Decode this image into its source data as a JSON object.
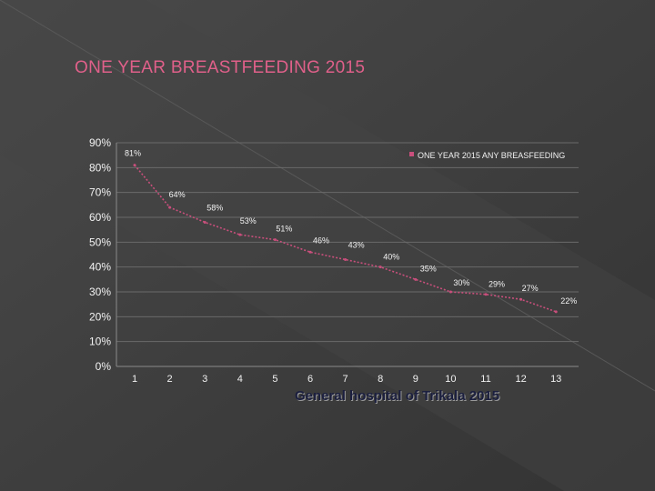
{
  "slide": {
    "title": "ONE YEAR BREASTFEEDING 2015",
    "caption": "General hospital of Trikala 2015"
  },
  "colors": {
    "background": "#3d3d3d",
    "title": "#e0608a",
    "series_line": "#c94f7c",
    "axis_text": "#f2f2f2",
    "gridline": "#6a6a6a",
    "caption": "#1b1f3f"
  },
  "chart_data": {
    "type": "line",
    "x": [
      1,
      2,
      3,
      4,
      5,
      6,
      7,
      8,
      9,
      10,
      11,
      12,
      13
    ],
    "series": [
      {
        "name": "ONE YEAR 2015 ANY BREASFEEDING",
        "values": [
          81,
          64,
          58,
          53,
          51,
          46,
          43,
          40,
          35,
          30,
          29,
          27,
          22
        ],
        "labels": [
          "81%",
          "64%",
          "58%",
          "53%",
          "51%",
          "46%",
          "43%",
          "40%",
          "35%",
          "30%",
          "29%",
          "27%",
          "22%"
        ]
      }
    ],
    "yticks": [
      "0%",
      "10%",
      "20%",
      "30%",
      "40%",
      "50%",
      "60%",
      "70%",
      "80%",
      "90%"
    ],
    "ylim": [
      0,
      90
    ],
    "grid": true,
    "legend_position": "top-right",
    "line_style": "dashed"
  }
}
